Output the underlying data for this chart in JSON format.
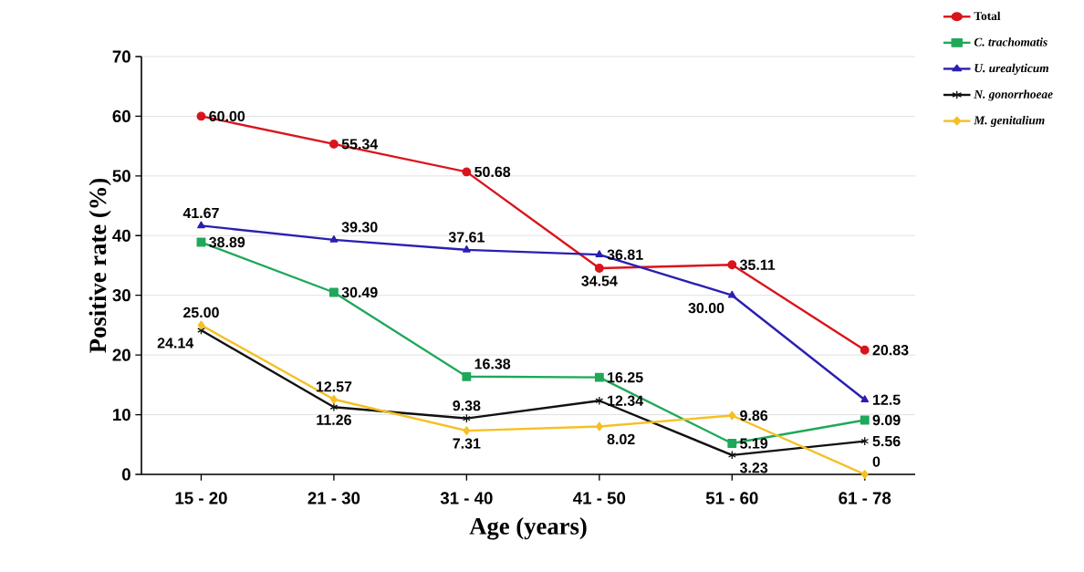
{
  "chart_data": {
    "type": "line",
    "xlabel": "Age (years)",
    "ylabel": "Positive rate (%)",
    "categories": [
      "15 - 20",
      "21 - 30",
      "31 - 40",
      "41 - 50",
      "51 - 60",
      "61 - 78"
    ],
    "series": [
      {
        "name": "Total",
        "color": "#d9141c",
        "marker": "circle",
        "values": [
          60.0,
          55.34,
          50.68,
          34.54,
          35.11,
          20.83
        ],
        "value_labels": [
          "60.00",
          "55.34",
          "50.68",
          "34.54",
          "35.11",
          "20.83"
        ]
      },
      {
        "name": "C. trachomatis",
        "color": "#1fa85a",
        "marker": "square",
        "values": [
          38.89,
          30.49,
          16.38,
          16.25,
          5.19,
          9.09
        ],
        "value_labels": [
          "38.89",
          "30.49",
          "16.38",
          "16.25",
          "5.19",
          "9.09"
        ]
      },
      {
        "name": "U. urealyticum",
        "color": "#2a1fb0",
        "marker": "triangle",
        "values": [
          41.67,
          39.3,
          37.61,
          36.81,
          30.0,
          12.5
        ],
        "value_labels": [
          "41.67",
          "39.30",
          "37.61",
          "36.81",
          "30.00",
          "12.5"
        ]
      },
      {
        "name": "N. gonorrhoeae",
        "color": "#111111",
        "marker": "cross",
        "values": [
          24.14,
          11.26,
          9.38,
          12.34,
          3.23,
          5.56
        ],
        "value_labels": [
          "24.14",
          "11.26",
          "9.38",
          "12.34",
          "3.23",
          "5.56"
        ]
      },
      {
        "name": "M. genitalium",
        "color": "#f5c022",
        "marker": "diamond",
        "values": [
          25.0,
          12.57,
          7.31,
          8.02,
          9.86,
          0
        ],
        "value_labels": [
          "25.00",
          "12.57",
          "7.31",
          "8.02",
          "9.86",
          "0"
        ]
      }
    ],
    "ylim": [
      0,
      70
    ],
    "yticks": [
      0,
      10,
      20,
      30,
      40,
      50,
      60,
      70
    ],
    "grid": "y",
    "legend": "top right",
    "line_style": "solid"
  }
}
